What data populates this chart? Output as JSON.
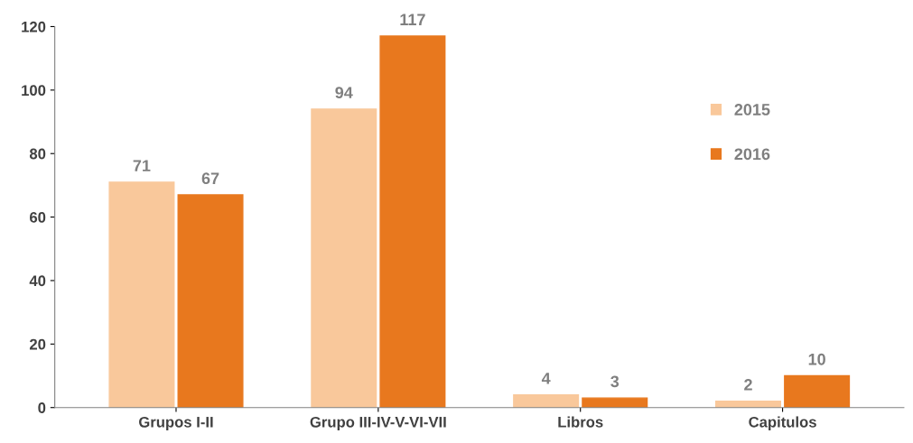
{
  "chart_data": {
    "type": "bar",
    "categories": [
      "Grupos I-II",
      "Grupo III-IV-V-VI-VII",
      "Libros",
      "Capitulos"
    ],
    "series": [
      {
        "name": "2015",
        "color": "#f9c89b",
        "values": [
          71,
          94,
          4,
          2
        ]
      },
      {
        "name": "2016",
        "color": "#e8781e",
        "values": [
          67,
          117,
          3,
          10
        ]
      }
    ],
    "ylim": [
      0,
      120
    ],
    "yticks": [
      0,
      20,
      40,
      60,
      80,
      100,
      120
    ],
    "data_labels": true,
    "legend": "right",
    "grid": false
  }
}
